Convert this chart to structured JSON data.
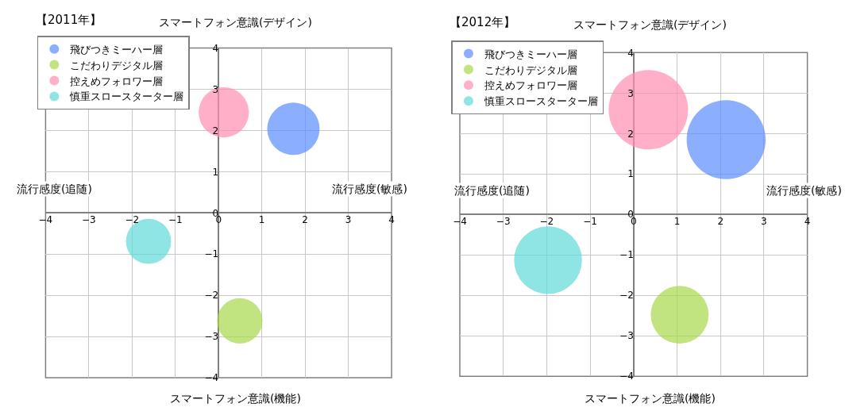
{
  "chart_data": [
    {
      "type": "bubble",
      "title": "【2011年】",
      "annotations": [
        "スマートフォン意識(デザイン)",
        "スマートフォン意識(機能)",
        "流行感度(追随)",
        "流行感度(敏感)"
      ],
      "series": [
        {
          "name": "飛びつきミーハー層",
          "color": "#5b8cff",
          "x": [
            1.73
          ],
          "values": [
            2.04
          ],
          "sizes": [
            1
          ]
        },
        {
          "name": "こだわりデジタル層",
          "color": "#a6d94a",
          "x": [
            0.49
          ],
          "values": [
            -2.62
          ],
          "sizes": [
            0.75
          ]
        },
        {
          "name": "控えめフォロワー層",
          "color": "#ff8fb0",
          "x": [
            0.12
          ],
          "values": [
            2.44
          ],
          "sizes": [
            0.92
          ]
        },
        {
          "name": "慎重スロースターター層",
          "color": "#5fd8d8",
          "x": [
            -1.62
          ],
          "values": [
            -0.69
          ],
          "sizes": [
            0.74
          ]
        }
      ],
      "xlim": [
        -4,
        4
      ],
      "xticks": [
        -4,
        -3,
        -2,
        -1,
        0,
        1,
        2,
        3,
        4
      ],
      "ylim": [
        -4,
        4
      ],
      "yticks": [
        -4,
        -3,
        -2,
        -1,
        0,
        1,
        2,
        3,
        4
      ],
      "grid": true,
      "legend": "top left"
    },
    {
      "type": "bubble",
      "title": "【2012年】",
      "annotations": [
        "スマートフォン意識(デザイン)",
        "スマートフォン意識(機能)",
        "流行感度(追随)",
        "流行感度(敏感)"
      ],
      "series": [
        {
          "name": "飛びつきミーハー層",
          "color": "#5b8cff",
          "x": [
            2.13
          ],
          "values": [
            1.85
          ],
          "sizes": [
            0.99
          ]
        },
        {
          "name": "こだわりデジタル層",
          "color": "#a6d94a",
          "x": [
            1.06
          ],
          "values": [
            -2.48
          ],
          "sizes": [
            0.53
          ]
        },
        {
          "name": "控えめフォロワー層",
          "color": "#ff8fb0",
          "x": [
            0.34
          ],
          "values": [
            2.59
          ],
          "sizes": [
            1
          ]
        },
        {
          "name": "慎重スロースターター層",
          "color": "#5fd8d8",
          "x": [
            -1.97
          ],
          "values": [
            -1.13
          ],
          "sizes": [
            0.73
          ]
        }
      ],
      "xlim": [
        -4,
        4
      ],
      "xticks": [
        -4,
        -3,
        -2,
        -1,
        0,
        1,
        2,
        3,
        4
      ],
      "ylim": [
        -4,
        4
      ],
      "yticks": [
        -4,
        -3,
        -2,
        -1,
        0,
        1,
        2,
        3,
        4
      ],
      "grid": true,
      "legend": "top left"
    }
  ]
}
